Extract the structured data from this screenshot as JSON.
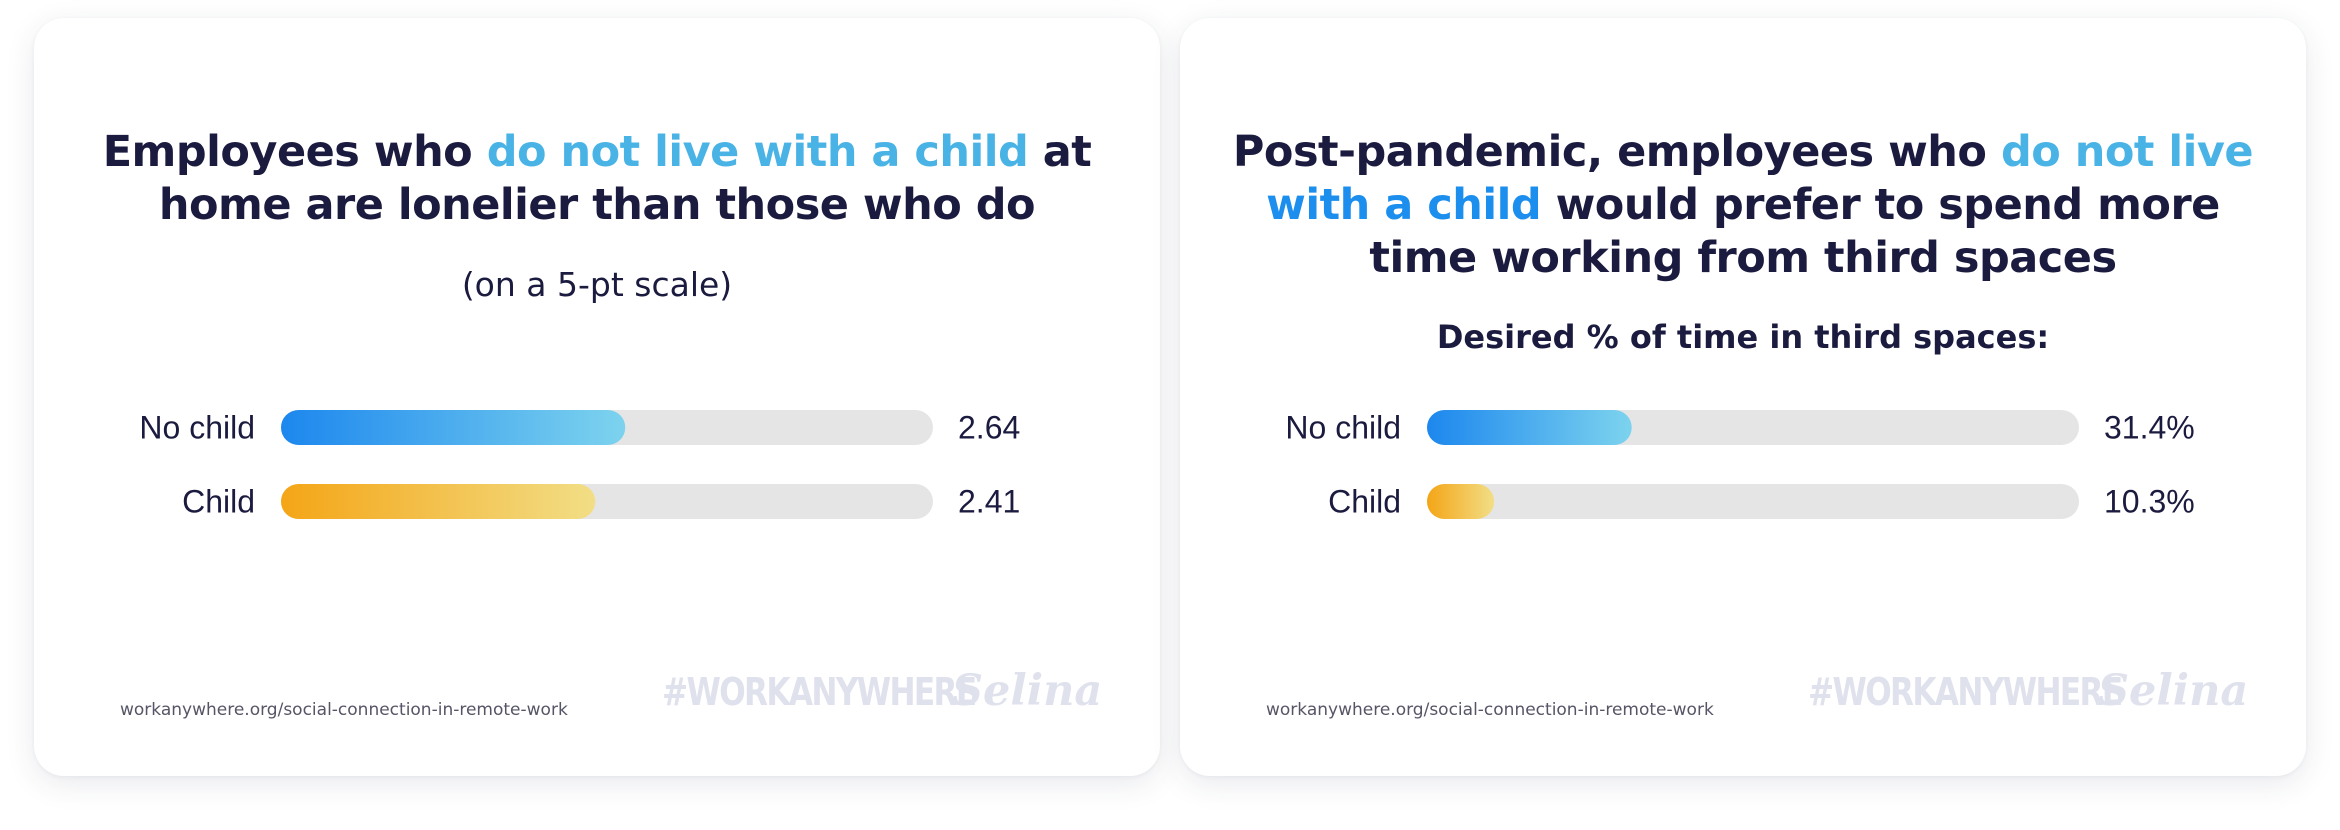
{
  "colors": {
    "dark_text": "#1b1a3f",
    "highlight_light": "#4ab3e6",
    "highlight_strong": "#1c8eed",
    "track": "#e5e5e5",
    "no_child_gradient": [
      "#1c87ee",
      "#7dd3ee"
    ],
    "child_gradient": [
      "#f4a516",
      "#f2de86"
    ],
    "watermark": "#dfe1ec"
  },
  "cards": [
    {
      "title_before": "Employees who ",
      "title_highlight": "do not live with a child",
      "title_after": " at home are lonelier than those who do",
      "subtitle": "(on a 5-pt scale)",
      "source": "workanywhere.org/social-connection-in-remote-work",
      "hashtag": "#WORKANYWHERE",
      "brand": "Selina"
    },
    {
      "title_before": "Post-pandemic, employees who ",
      "title_highlight_1": "do not live",
      "title_highlight_2": "with a child",
      "title_after": " would prefer to spend more time working from third spaces",
      "subtitle": "Desired % of time in third spaces:",
      "source": "workanywhere.org/social-connection-in-remote-work",
      "hashtag": "#WORKANYWHERE",
      "brand": "Selina"
    }
  ],
  "chart_data": [
    {
      "type": "bar",
      "orientation": "horizontal",
      "categories": [
        "No child",
        "Child"
      ],
      "values": [
        2.64,
        2.41
      ],
      "value_labels": [
        "2.64",
        "2.41"
      ],
      "xlim": [
        0,
        5
      ],
      "colors": [
        "no_child_gradient",
        "child_gradient"
      ]
    },
    {
      "type": "bar",
      "orientation": "horizontal",
      "categories": [
        "No child",
        "Child"
      ],
      "values": [
        31.4,
        10.3
      ],
      "value_labels": [
        "31.4%",
        "10.3%"
      ],
      "xlim": [
        0,
        100
      ],
      "colors": [
        "no_child_gradient",
        "child_gradient"
      ]
    }
  ]
}
